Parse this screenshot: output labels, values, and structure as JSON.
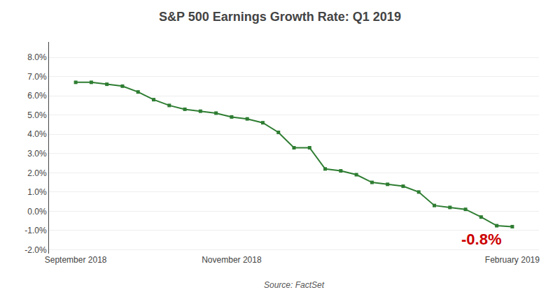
{
  "chart_data": {
    "type": "line",
    "title": "S&P 500 Earnings Growth Rate: Q1 2019",
    "source": "Source: FactSet",
    "annotations": [
      {
        "text": "-0.8%",
        "color": "#cc0000"
      }
    ],
    "categories": [
      "September 2018",
      null,
      null,
      null,
      null,
      null,
      null,
      null,
      null,
      null,
      "November 2018",
      null,
      null,
      null,
      null,
      null,
      null,
      null,
      null,
      null,
      null,
      null,
      null,
      null,
      null,
      null,
      null,
      null,
      "February 2019"
    ],
    "values": [
      6.7,
      6.7,
      6.6,
      6.5,
      6.2,
      5.8,
      5.5,
      5.3,
      5.2,
      5.1,
      4.9,
      4.8,
      4.6,
      4.1,
      3.3,
      3.3,
      2.2,
      2.1,
      1.9,
      1.5,
      1.4,
      1.3,
      1.0,
      0.3,
      0.2,
      0.1,
      -0.3,
      -0.75,
      -0.8
    ],
    "color": "#2e7d32",
    "marker": "square",
    "ylim": [
      -2.2,
      8.8
    ],
    "yticks": [
      {
        "value": -2.0,
        "label": "-2.0%"
      },
      {
        "value": -1.0,
        "label": "-1.0%"
      },
      {
        "value": 0.0,
        "label": "0.0%"
      },
      {
        "value": 1.0,
        "label": "1.0%"
      },
      {
        "value": 2.0,
        "label": "2.0%"
      },
      {
        "value": 3.0,
        "label": "3.0%"
      },
      {
        "value": 4.0,
        "label": "4.0%"
      },
      {
        "value": 5.0,
        "label": "5.0%"
      },
      {
        "value": 6.0,
        "label": "6.0%"
      },
      {
        "value": 7.0,
        "label": "7.0%"
      },
      {
        "value": 8.0,
        "label": "8.0%"
      }
    ],
    "grid": true
  }
}
